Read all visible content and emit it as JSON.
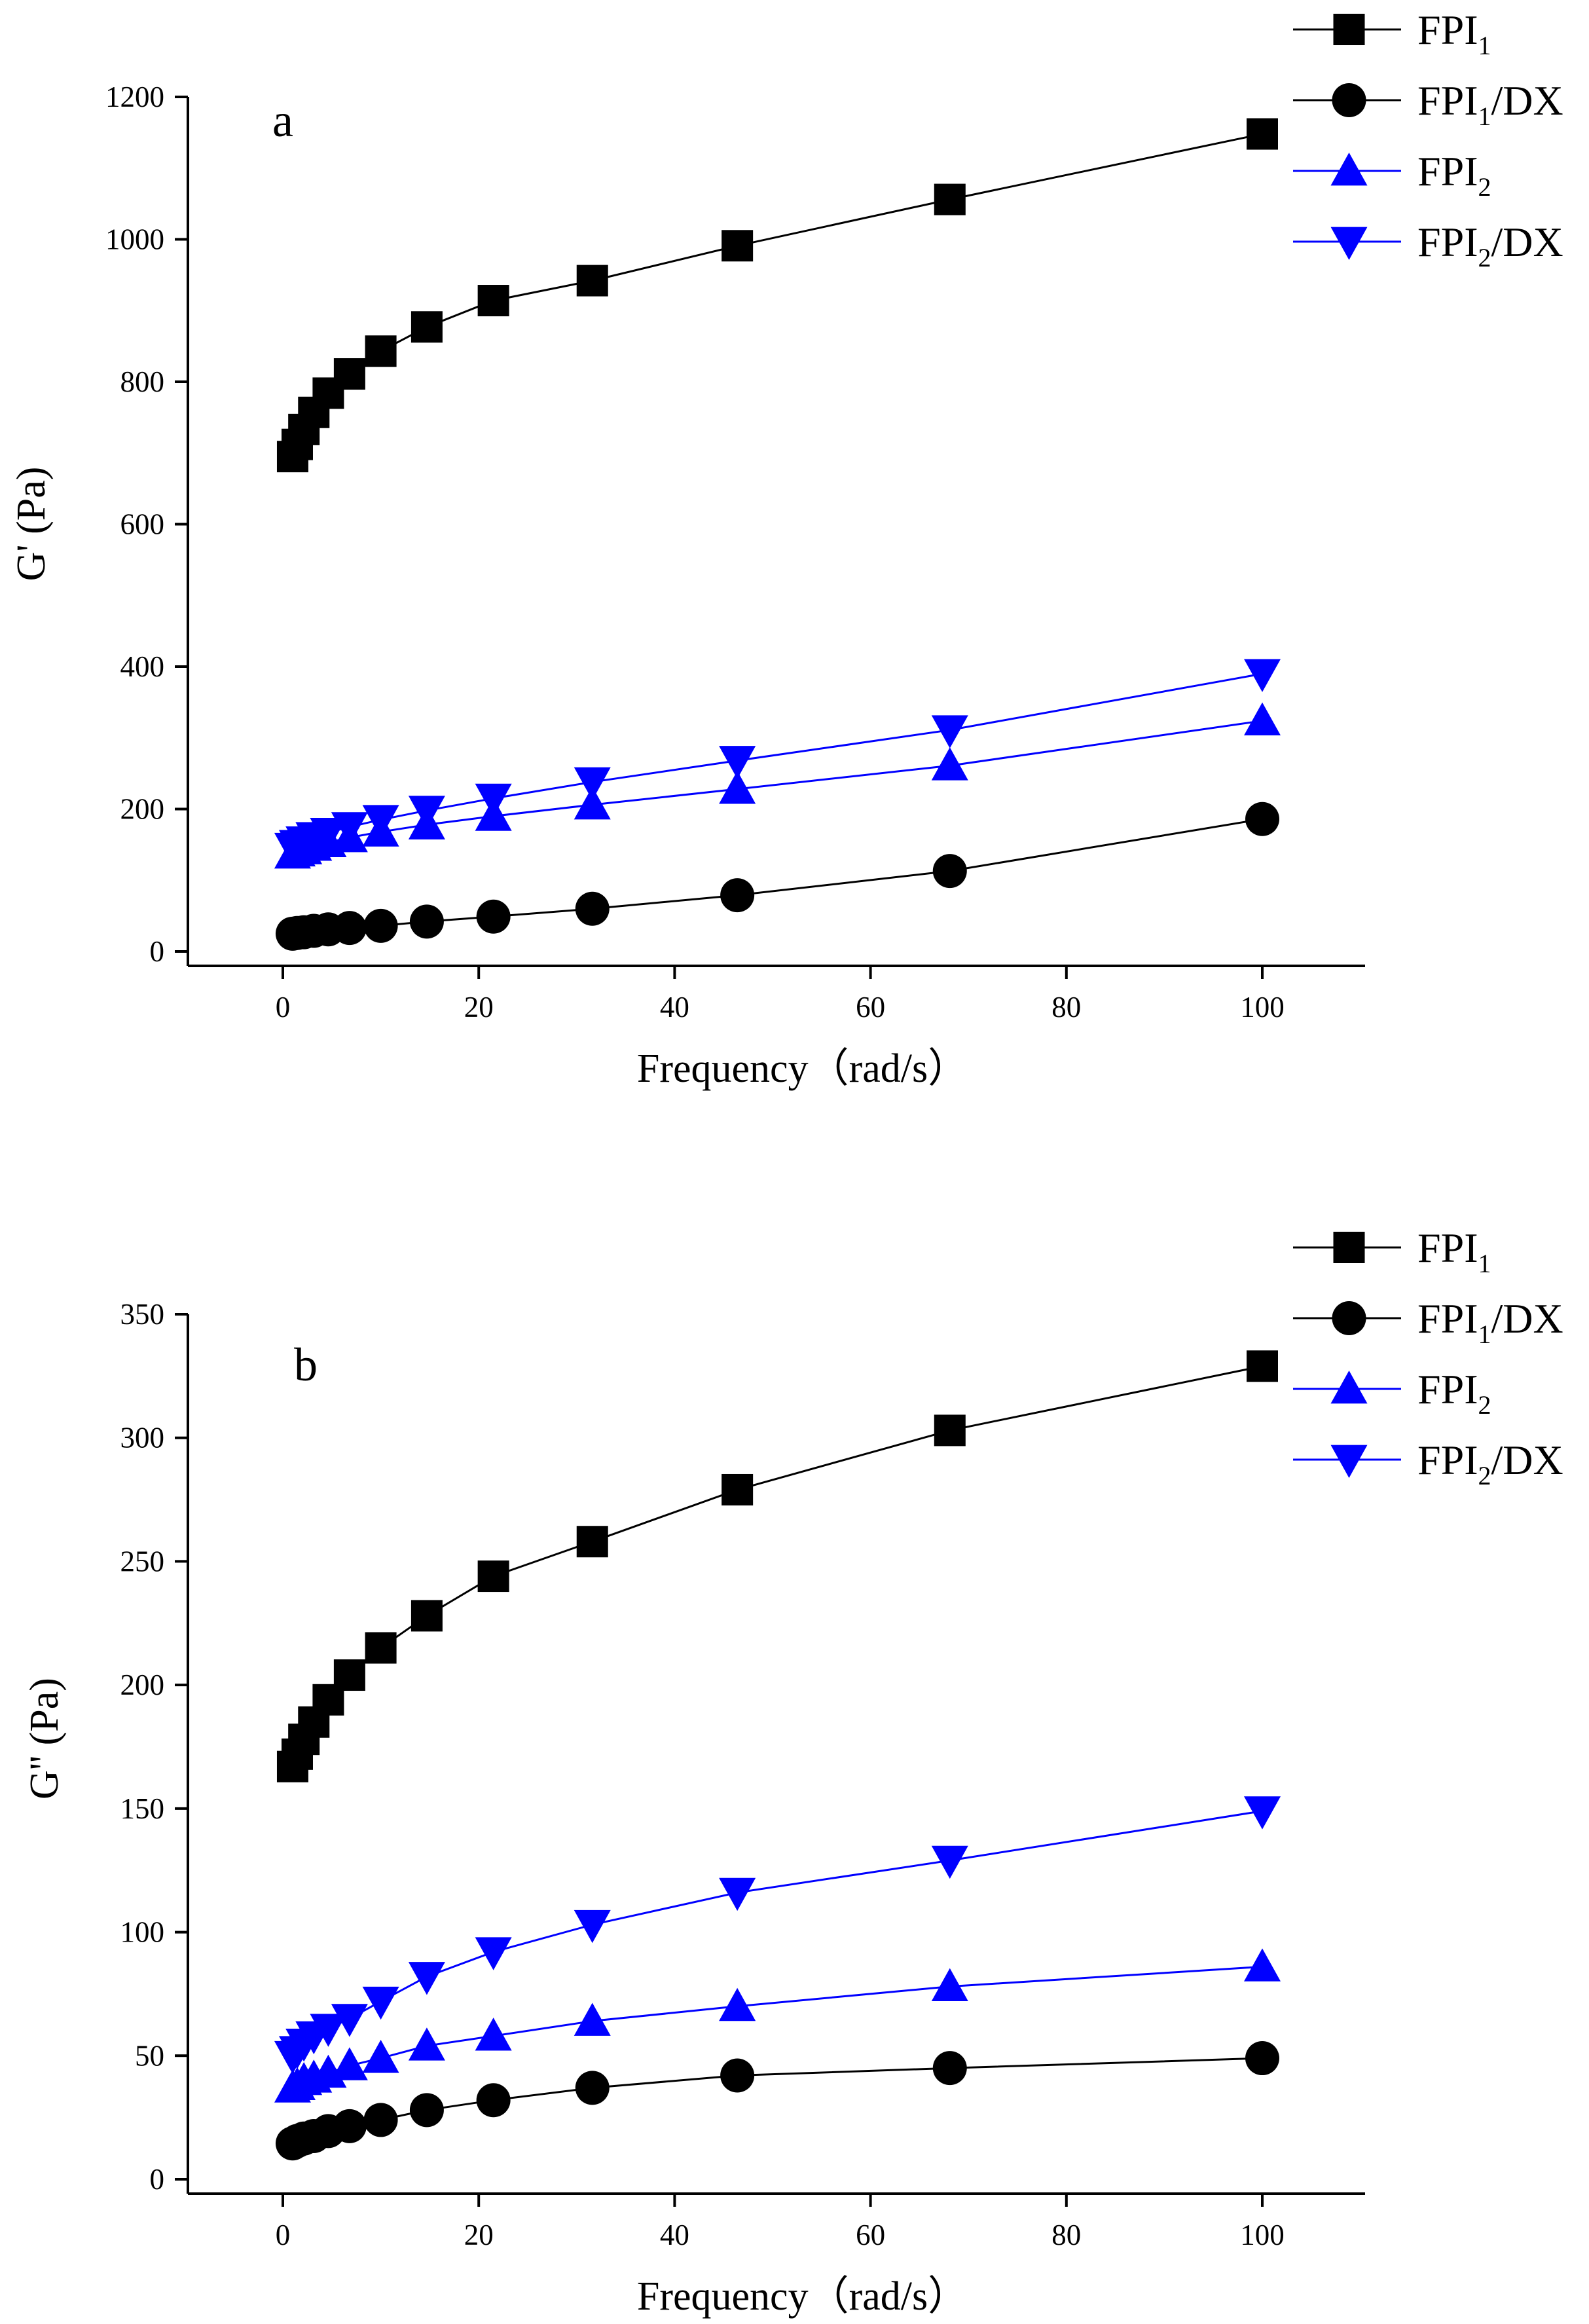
{
  "chart_data": [
    {
      "type": "line",
      "panel_label": "a",
      "xlabel": "Frequency（rad/s）",
      "ylabel": "G' (Pa)",
      "xlim": [
        -10,
        110
      ],
      "ylim": [
        -20,
        1200
      ],
      "xticks": [
        0,
        20,
        40,
        60,
        80,
        100
      ],
      "yticks": [
        0,
        200,
        400,
        600,
        800,
        1000,
        1200
      ],
      "grid": false,
      "legend_position": "top-right, outside plot",
      "x": [
        1,
        1.47,
        2.15,
        3.16,
        4.64,
        6.81,
        10,
        14.7,
        21.5,
        31.6,
        46.4,
        68.1,
        100
      ],
      "series": [
        {
          "name": "FPI1",
          "legend_base": "FPI",
          "legend_sub": "1",
          "legend_suffix": "",
          "marker": "square",
          "color": "#000000",
          "values": [
            695,
            712,
            733,
            757,
            784,
            811,
            843,
            877,
            914,
            942,
            991,
            1056,
            1148
          ]
        },
        {
          "name": "FPI1/DX",
          "legend_base": "FPI",
          "legend_sub": "1",
          "legend_suffix": "/DX",
          "marker": "circle",
          "color": "#000000",
          "values": [
            25,
            26,
            27,
            29,
            31,
            33,
            36,
            42,
            49,
            60,
            79,
            113,
            186
          ]
        },
        {
          "name": "FPI2",
          "legend_base": "FPI",
          "legend_sub": "2",
          "legend_suffix": "",
          "marker": "triangle-up",
          "color": "#0000ff",
          "values": [
            137,
            140,
            143,
            148,
            153,
            160,
            168,
            178,
            190,
            206,
            228,
            261,
            324
          ]
        },
        {
          "name": "FPI2/DX",
          "legend_base": "FPI",
          "legend_sub": "2",
          "legend_suffix": "/DX",
          "marker": "triangle-down",
          "color": "#0000ff",
          "values": [
            146,
            150,
            155,
            161,
            167,
            175,
            185,
            198,
            215,
            238,
            268,
            311,
            390
          ]
        }
      ]
    },
    {
      "type": "line",
      "panel_label": "b",
      "xlabel": "Frequency（rad/s）",
      "ylabel": "G'' (Pa)",
      "xlim": [
        -10,
        110
      ],
      "ylim": [
        0,
        350
      ],
      "xticks": [
        0,
        20,
        40,
        60,
        80,
        100
      ],
      "yticks": [
        0,
        50,
        100,
        150,
        200,
        250,
        300,
        350
      ],
      "grid": false,
      "legend_position": "top-right, outside plot",
      "x": [
        1,
        1.47,
        2.15,
        3.16,
        4.64,
        6.81,
        10,
        14.7,
        21.5,
        31.6,
        46.4,
        68.1,
        100
      ],
      "series": [
        {
          "name": "FPI1",
          "legend_base": "FPI",
          "legend_sub": "1",
          "legend_suffix": "",
          "marker": "square",
          "color": "#000000",
          "values": [
            167,
            172,
            178,
            185,
            194,
            204,
            215,
            228,
            244,
            258,
            279,
            303,
            329
          ]
        },
        {
          "name": "FPI1/DX",
          "legend_base": "FPI",
          "legend_sub": "1",
          "legend_suffix": "/DX",
          "marker": "circle",
          "color": "#000000",
          "values": [
            14.5,
            15.5,
            16.5,
            17.5,
            19.5,
            21.5,
            24,
            28,
            32,
            37,
            42,
            45,
            49
          ]
        },
        {
          "name": "FPI2",
          "legend_base": "FPI",
          "legend_sub": "2",
          "legend_suffix": "",
          "marker": "triangle-up",
          "color": "#0000ff",
          "values": [
            37,
            38,
            40,
            41,
            43,
            46,
            49,
            54,
            58,
            64,
            70,
            78,
            86
          ]
        },
        {
          "name": "FPI2/DX",
          "legend_base": "FPI",
          "legend_sub": "2",
          "legend_suffix": "/DX",
          "marker": "triangle-down",
          "color": "#0000ff",
          "values": [
            50,
            52,
            55,
            58,
            61,
            65,
            72,
            82,
            92,
            103,
            116,
            129,
            149
          ]
        }
      ]
    }
  ]
}
